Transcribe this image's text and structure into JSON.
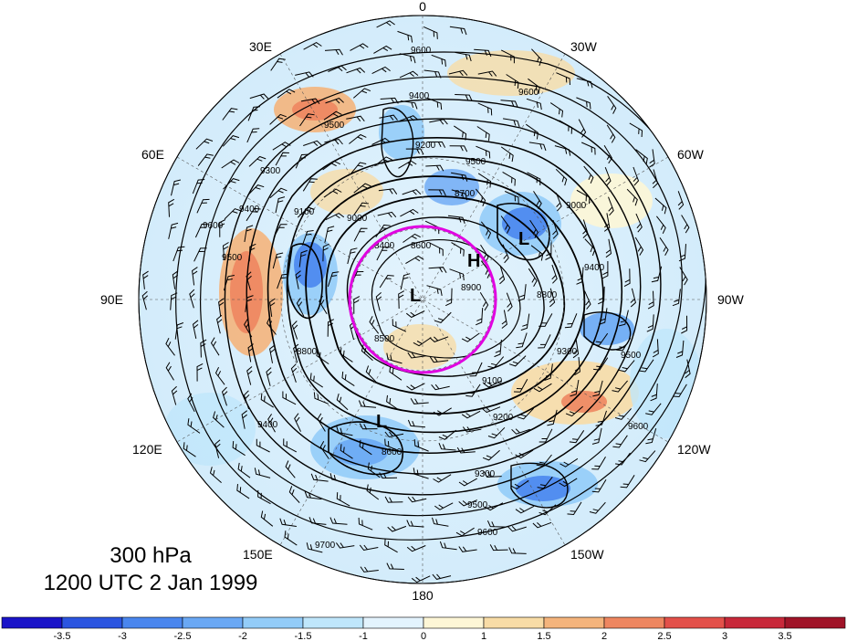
{
  "title": {
    "level": "300 hPa",
    "time": "1200 UTC 2 Jan 1999"
  },
  "lon_labels": [
    "0",
    "30W",
    "60W",
    "90W",
    "120W",
    "150W",
    "180",
    "150E",
    "120E",
    "90E",
    "60E",
    "30E"
  ],
  "contour_labels": [
    "9600",
    "9500",
    "9400",
    "9300",
    "9200",
    "9100",
    "9000",
    "8900",
    "8800",
    "8700",
    "8600",
    "8500",
    "8400",
    "9700"
  ],
  "centers": [
    {
      "label": "H"
    },
    {
      "label": "L"
    },
    {
      "label": "L"
    },
    {
      "label": "L"
    }
  ],
  "colorbar": {
    "ticks": [
      "-3.5",
      "-3",
      "-2.5",
      "-2",
      "-1.5",
      "-1",
      "0",
      "1",
      "1.5",
      "2",
      "2.5",
      "3",
      "3.5"
    ],
    "colors": [
      "#1a14c8",
      "#2b55e0",
      "#4a86ee",
      "#6aa8f4",
      "#93ccf8",
      "#bfe6fb",
      "#e3f3fd",
      "#fdf6d6",
      "#f8dca6",
      "#f4b47c",
      "#ee8660",
      "#e3504a",
      "#c8283a",
      "#a01428"
    ]
  },
  "colors": {
    "highlight_circle": "#e000e0",
    "contour": "#000000"
  }
}
